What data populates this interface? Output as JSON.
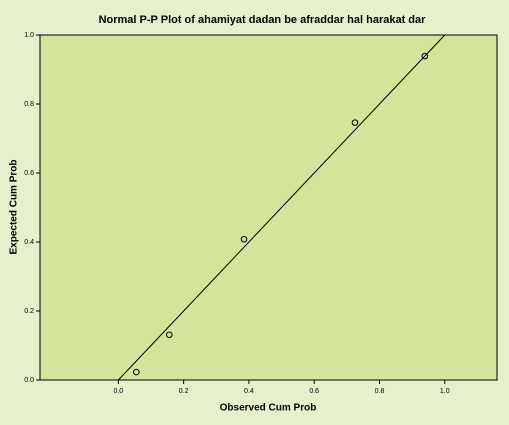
{
  "chart_data": {
    "type": "scatter",
    "title": "Normal P-P Plot of ahamiyat dadan be afraddar hal harakat dar",
    "xlabel": "Observed Cum Prob",
    "ylabel": "Expected Cum Prob",
    "x": [
      0.055,
      0.156,
      0.385,
      0.725,
      0.939
    ],
    "values": [
      0.023,
      0.131,
      0.408,
      0.746,
      0.939
    ],
    "color": "#000000",
    "xlim": [
      -0.24,
      1.16
    ],
    "ylim": [
      0,
      1
    ],
    "xticks": [
      {
        "value": 0,
        "label": "0.0"
      },
      {
        "value": 0.2,
        "label": "0.2"
      },
      {
        "value": 0.4,
        "label": "0.4"
      },
      {
        "value": 0.6,
        "label": "0.6"
      },
      {
        "value": 0.8,
        "label": "0.8"
      },
      {
        "value": 1,
        "label": "1.0"
      }
    ],
    "yticks": [
      {
        "value": 0,
        "label": "0.0"
      },
      {
        "value": 0.2,
        "label": "0.2"
      },
      {
        "value": 0.4,
        "label": "0.4"
      },
      {
        "value": 0.6,
        "label": "0.6"
      },
      {
        "value": 0.8,
        "label": "0.8"
      },
      {
        "value": 1,
        "label": "1.0"
      }
    ]
  }
}
